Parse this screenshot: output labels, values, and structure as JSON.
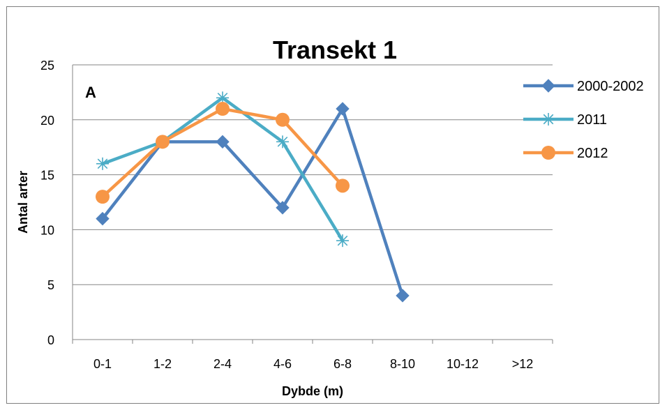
{
  "chart_data": {
    "type": "line",
    "title": "Transekt 1",
    "xlabel": "Dybde (m)",
    "ylabel": "Antal arter",
    "annotation": "A",
    "categories": [
      "0-1",
      "1-2",
      "2-4",
      "4-6",
      "6-8",
      "8-10",
      "10-12",
      ">12"
    ],
    "ylim": [
      0,
      25
    ],
    "yticks": [
      0,
      5,
      10,
      15,
      20,
      25
    ],
    "grid": true,
    "legend_position": "right",
    "series": [
      {
        "name": "2000-2002",
        "color": "#4f81bd",
        "marker": "diamond",
        "values": [
          11,
          18,
          18,
          12,
          21,
          4,
          null,
          null
        ]
      },
      {
        "name": "2011",
        "color": "#4bacc6",
        "marker": "asterisk",
        "values": [
          16,
          18,
          22,
          18,
          9,
          null,
          null,
          null
        ]
      },
      {
        "name": "2012",
        "color": "#f79646",
        "marker": "circle",
        "values": [
          13,
          18,
          21,
          20,
          14,
          null,
          null,
          null
        ]
      }
    ]
  }
}
